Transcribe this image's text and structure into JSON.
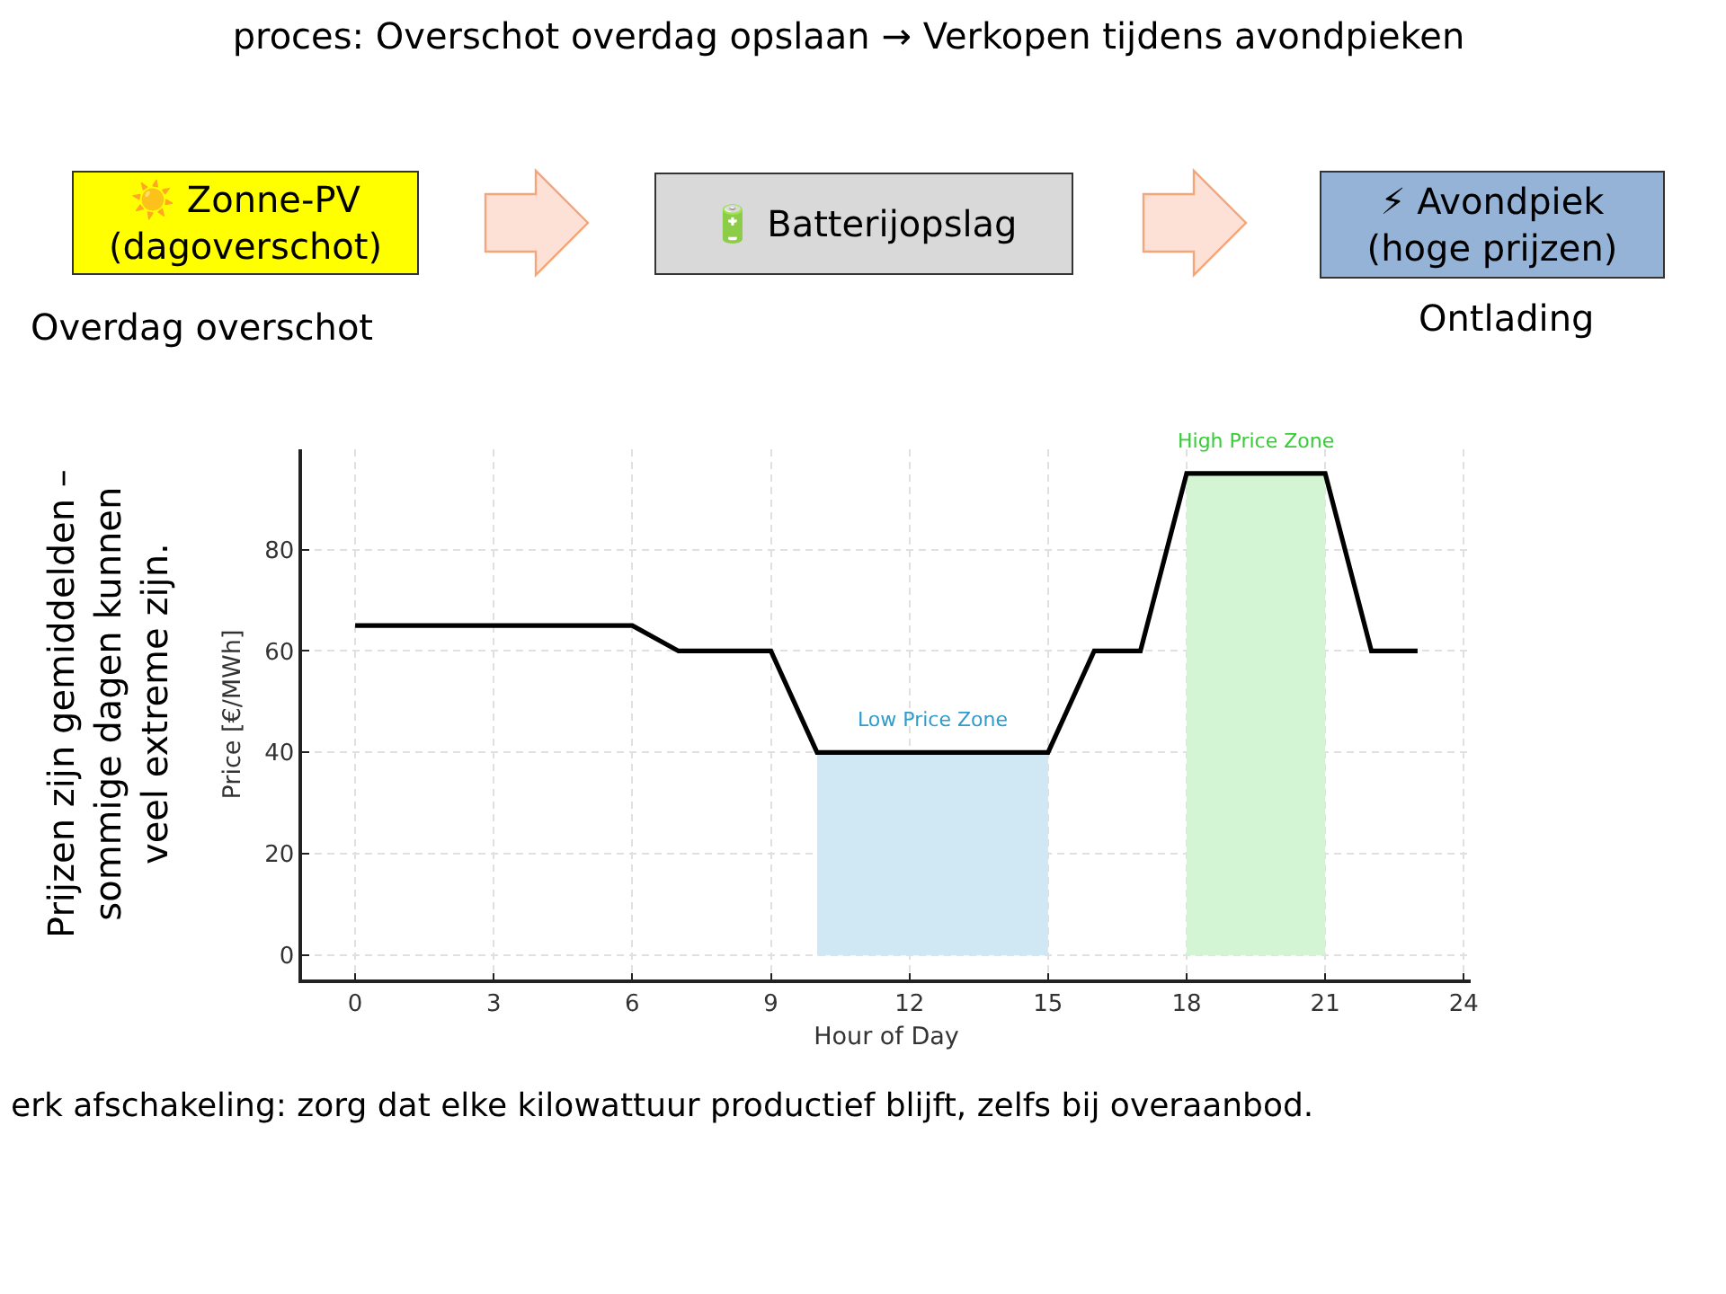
{
  "chart_data": {
    "type": "line",
    "title": "proces: Overschot overdag opslaan → Verkopen tijdens avondpieken",
    "xlabel": "Hour of Day",
    "ylabel": "Price [€/MWh]",
    "annotations": [
      "☀️ Zonne-PV\n(dagoverschot)",
      "🔋 Batterijopslag",
      "⚡ Avondpiek\n(hoge prijzen)",
      "Overdag overschot",
      "Ontlading",
      "Prijzen zijn gemiddelden –\nsommige dagen kunnen\nveel extreme zijn.",
      "erk afschakeling: zorg dat elke kilowattuur productief blijft, zelfs bij overaanbod."
    ],
    "series": [
      {
        "type": "area",
        "name": "Low Price Zone",
        "color": "#cfe8f3",
        "x": [
          10,
          15
        ],
        "values": [
          40,
          40
        ]
      },
      {
        "type": "area",
        "name": "High Price Zone",
        "color": "#d3f5d3",
        "x": [
          18,
          21
        ],
        "values": [
          95,
          95
        ]
      },
      {
        "color": "#000000",
        "x": [
          0,
          1,
          2,
          3,
          4,
          5,
          6,
          7,
          8,
          9,
          10,
          11,
          12,
          13,
          14,
          15,
          16,
          17,
          18,
          19,
          20,
          21,
          22,
          23
        ],
        "values": [
          65,
          65,
          65,
          65,
          65,
          65,
          65,
          60,
          60,
          60,
          40,
          40,
          40,
          40,
          40,
          40,
          60,
          60,
          95,
          95,
          95,
          95,
          60,
          60
        ]
      }
    ],
    "xlim": [
      -1.15,
      24.15
    ],
    "xticks": [
      0,
      3,
      6,
      9,
      12,
      15,
      18,
      21,
      24
    ],
    "ylim": [
      -4.75,
      99.75
    ],
    "yticks": [
      0,
      20,
      40,
      60,
      80
    ],
    "grid": true
  }
}
